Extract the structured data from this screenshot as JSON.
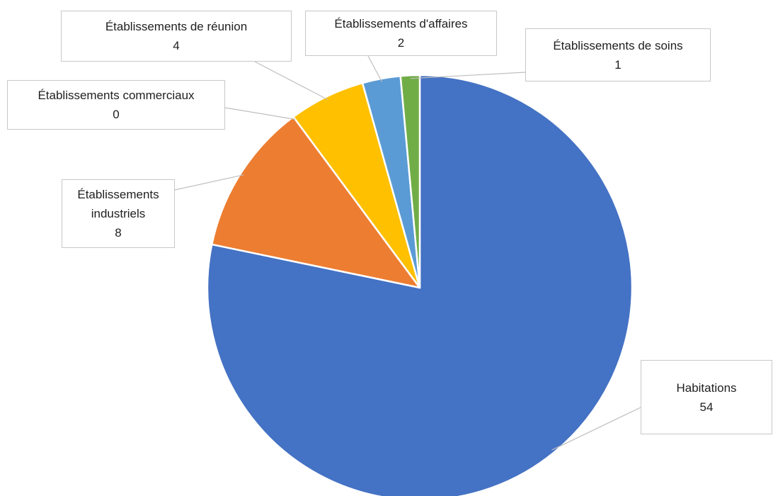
{
  "chart_data": {
    "type": "pie",
    "title": "",
    "start_angle_deg": 0,
    "direction": "clockwise",
    "slices": [
      {
        "label": "Habitations",
        "value": 54,
        "color": "#4472C4"
      },
      {
        "label": "Établissements industriels",
        "value": 8,
        "color": "#ED7D31"
      },
      {
        "label": "Établissements commerciaux",
        "value": 0,
        "color": "#A5A5A5"
      },
      {
        "label": "Établissements de réunion",
        "value": 4,
        "color": "#FFC000"
      },
      {
        "label": "Établissements d'affaires",
        "value": 2,
        "color": "#5B9BD5"
      },
      {
        "label": "Établissements de soins",
        "value": 1,
        "color": "#70AD47"
      }
    ],
    "data_labels": "callouts",
    "legend": "none"
  }
}
